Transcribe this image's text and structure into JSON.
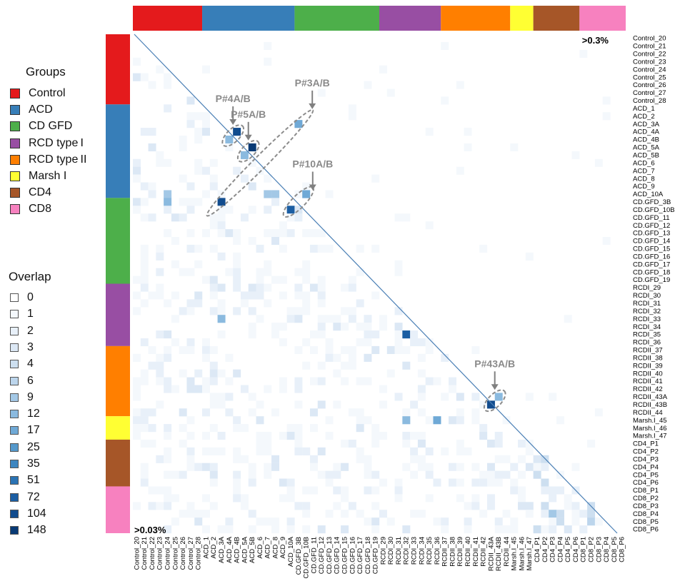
{
  "chart_data": {
    "type": "heatmap",
    "corner_labels": {
      "top_right": ">0.3%",
      "bottom_left": ">0.03%"
    },
    "samples": [
      "Control_20",
      "Control_21",
      "Control_22",
      "Control_23",
      "Control_24",
      "Control_25",
      "Control_26",
      "Control_27",
      "Control_28",
      "ACD_1",
      "ACD_2",
      "ACD_3A",
      "ACD_4A",
      "ACD_4B",
      "ACD_5A",
      "ACD_5B",
      "ACD_6",
      "ACD_7",
      "ACD_8",
      "ACD_9",
      "ACD_10A",
      "CD.GFD_3B",
      "CD.GFD_10B",
      "CD.GFD_11",
      "CD.GFD_12",
      "CD.GFD_13",
      "CD.GFD_14",
      "CD.GFD_15",
      "CD.GFD_16",
      "CD.GFD_17",
      "CD.GFD_18",
      "CD.GFD_19",
      "RCDI_29",
      "RCDI_30",
      "RCDI_31",
      "RCDI_32",
      "RCDI_33",
      "RCDI_34",
      "RCDI_35",
      "RCDI_36",
      "RCDII_37",
      "RCDII_38",
      "RCDII_39",
      "RCDII_40",
      "RCDII_41",
      "RCDII_42",
      "RCDII_43A",
      "RCDII_43B",
      "RCDII_44",
      "Marsh.I_45",
      "Marsh.I_46",
      "Marsh.I_47",
      "CD4_P1",
      "CD4_P2",
      "CD4_P3",
      "CD4_P4",
      "CD4_P5",
      "CD4_P6",
      "CD8_P1",
      "CD8_P2",
      "CD8_P3",
      "CD8_P4",
      "CD8_P5",
      "CD8_P6"
    ],
    "groups": [
      {
        "name": "Control",
        "color": "#e41a1c",
        "count": 9
      },
      {
        "name": "ACD",
        "color": "#377eb8",
        "count": 12
      },
      {
        "name": "CD GFD",
        "color": "#4daf4a",
        "count": 11
      },
      {
        "name": "RCD type I",
        "color": "#984ea3",
        "count": 8
      },
      {
        "name": "RCD type II",
        "color": "#ff7f00",
        "count": 9
      },
      {
        "name": "Marsh I",
        "color": "#ffff33",
        "count": 3
      },
      {
        "name": "CD4",
        "color": "#a65628",
        "count": 6
      },
      {
        "name": "CD8",
        "color": "#f781bf",
        "count": 6
      }
    ],
    "overlap_scale": {
      "values": [
        0,
        1,
        2,
        3,
        4,
        6,
        9,
        12,
        17,
        25,
        35,
        51,
        72,
        104,
        148
      ],
      "colors": [
        "#ffffff",
        "#f4f8fc",
        "#e8f0f9",
        "#dce8f5",
        "#cddff0",
        "#bcd5ec",
        "#a3c8e6",
        "#8bbadf",
        "#6fa9d6",
        "#5599cc",
        "#3d86c0",
        "#2a73b4",
        "#1b5ea3",
        "#114c8e",
        "#083a75"
      ]
    },
    "strong_cells": [
      {
        "row": "ACD_4A",
        "col": "ACD_4B",
        "value": 104
      },
      {
        "row": "ACD_4B",
        "col": "ACD_4A",
        "value": 12
      },
      {
        "row": "ACD_5A",
        "col": "ACD_5B",
        "value": 148
      },
      {
        "row": "ACD_5B",
        "col": "ACD_5A",
        "value": 12
      },
      {
        "row": "ACD_3A",
        "col": "CD.GFD_3B",
        "value": 17
      },
      {
        "row": "CD.GFD_3B",
        "col": "ACD_3A",
        "value": 104
      },
      {
        "row": "ACD_10A",
        "col": "CD.GFD_10B",
        "value": 17
      },
      {
        "row": "CD.GFD_10B",
        "col": "ACD_10A",
        "value": 72
      },
      {
        "row": "RCDII_43A",
        "col": "RCDII_43B",
        "value": 12
      },
      {
        "row": "RCDII_43B",
        "col": "RCDII_43A",
        "value": 104
      },
      {
        "row": "RCDI_35",
        "col": "RCDI_32",
        "value": 72
      },
      {
        "row": "ACD_10A",
        "col": "ACD_8",
        "value": 9
      },
      {
        "row": "ACD_10A",
        "col": "ACD_7",
        "value": 9
      },
      {
        "row": "CD.GFD_3B",
        "col": "Control_24",
        "value": 12
      },
      {
        "row": "ACD_10A",
        "col": "Control_24",
        "value": 9
      },
      {
        "row": "RCDI_33",
        "col": "ACD_3A",
        "value": 12
      },
      {
        "row": "Marsh.I_45",
        "col": "RCDI_32",
        "value": 12
      },
      {
        "row": "Marsh.I_45",
        "col": "RCDI_36",
        "value": 17
      },
      {
        "row": "CD8_P4",
        "col": "CD4_P3",
        "value": 9
      },
      {
        "row": "CD8_P5",
        "col": "CD8_P2",
        "value": 6
      }
    ],
    "annotations": [
      {
        "label": "P#4A/B",
        "samples": [
          "ACD_4A",
          "ACD_4B"
        ]
      },
      {
        "label": "P#5A/B",
        "samples": [
          "ACD_5A",
          "ACD_5B"
        ]
      },
      {
        "label": "P#3A/B",
        "samples": [
          "ACD_3A",
          "CD.GFD_3B"
        ]
      },
      {
        "label": "P#10A/B",
        "samples": [
          "ACD_10A",
          "CD.GFD_10B"
        ]
      },
      {
        "label": "P#43A/B",
        "samples": [
          "RCDII_43A",
          "RCDII_43B"
        ]
      }
    ]
  },
  "legend": {
    "groups_title": "Groups",
    "group_labels": [
      "Control",
      "ACD",
      "CD GFD",
      "RCD type I",
      "RCD type II",
      "Marsh I",
      "CD4",
      "CD8"
    ],
    "overlap_title": "Overlap",
    "overlap_labels": [
      "0",
      "1",
      "2",
      "3",
      "4",
      "6",
      "9",
      "12",
      "17",
      "25",
      "35",
      "51",
      "72",
      "104",
      "148"
    ]
  }
}
